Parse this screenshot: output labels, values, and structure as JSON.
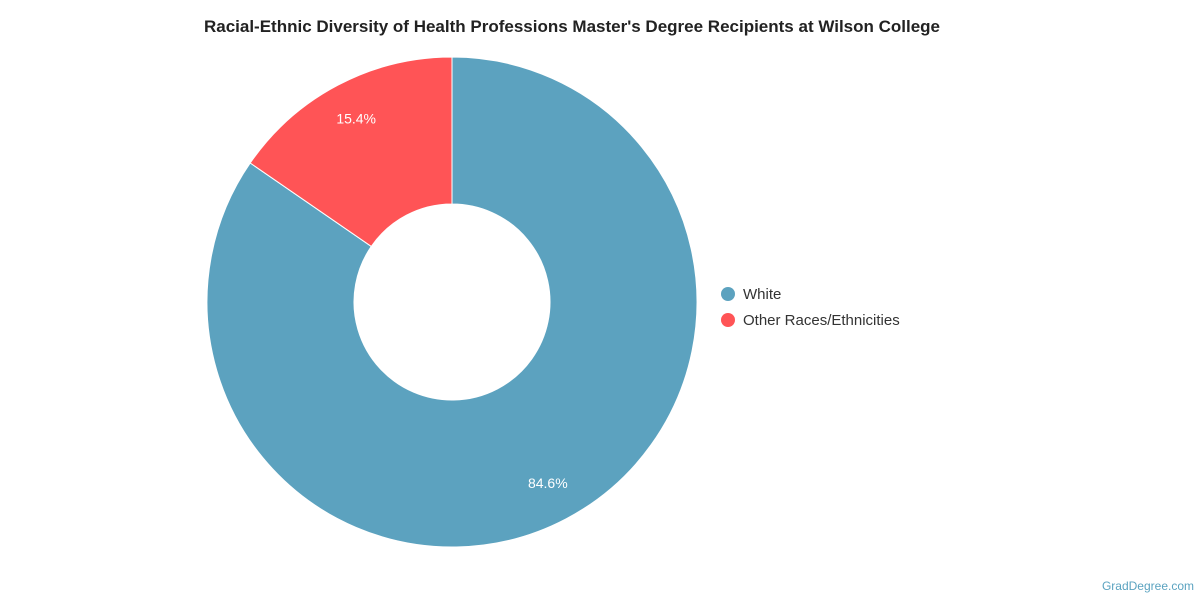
{
  "chart_data": {
    "type": "pie",
    "title": "Racial-Ethnic Diversity of Health Professions Master's Degree Recipients at Wilson College",
    "categories": [
      "White",
      "Other Races/Ethnicities"
    ],
    "values": [
      84.6,
      15.4
    ],
    "labels": [
      "84.6%",
      "15.4%"
    ],
    "colors": [
      "#5ca2bf",
      "#ff5456"
    ],
    "donut": true,
    "legend_position": "right"
  },
  "watermark": "GradDegree.com"
}
